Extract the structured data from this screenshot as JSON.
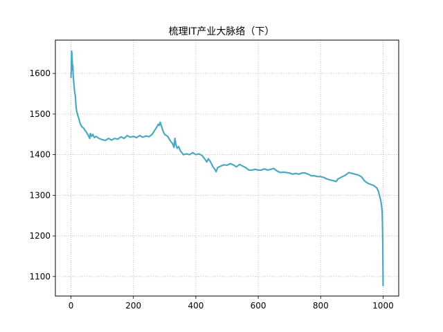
{
  "chart_data": {
    "type": "line",
    "title": "梳理IT产业大脉络（下）",
    "xlabel": "",
    "ylabel": "",
    "xlim": [
      -50,
      1050
    ],
    "ylim": [
      1052,
      1682
    ],
    "grid": true,
    "grid_style": "dotted",
    "xticks": [
      0,
      200,
      400,
      600,
      800,
      1000
    ],
    "yticks": [
      1100,
      1200,
      1300,
      1400,
      1500,
      1600
    ],
    "series": [
      {
        "color": "#4aa9c0",
        "points": [
          [
            0,
            1590
          ],
          [
            1,
            1610
          ],
          [
            2,
            1655
          ],
          [
            3,
            1648
          ],
          [
            4,
            1630
          ],
          [
            5,
            1608
          ],
          [
            6,
            1620
          ],
          [
            7,
            1598
          ],
          [
            8,
            1585
          ],
          [
            10,
            1570
          ],
          [
            12,
            1552
          ],
          [
            14,
            1545
          ],
          [
            16,
            1520
          ],
          [
            18,
            1508
          ],
          [
            20,
            1502
          ],
          [
            22,
            1496
          ],
          [
            25,
            1490
          ],
          [
            28,
            1480
          ],
          [
            32,
            1472
          ],
          [
            36,
            1468
          ],
          [
            40,
            1466
          ],
          [
            45,
            1460
          ],
          [
            50,
            1455
          ],
          [
            55,
            1448
          ],
          [
            60,
            1440
          ],
          [
            62,
            1452
          ],
          [
            66,
            1445
          ],
          [
            70,
            1450
          ],
          [
            75,
            1442
          ],
          [
            80,
            1445
          ],
          [
            90,
            1440
          ],
          [
            100,
            1437
          ],
          [
            110,
            1435
          ],
          [
            120,
            1440
          ],
          [
            130,
            1436
          ],
          [
            140,
            1440
          ],
          [
            150,
            1438
          ],
          [
            160,
            1444
          ],
          [
            170,
            1440
          ],
          [
            180,
            1447
          ],
          [
            190,
            1443
          ],
          [
            200,
            1445
          ],
          [
            210,
            1442
          ],
          [
            220,
            1447
          ],
          [
            230,
            1443
          ],
          [
            240,
            1446
          ],
          [
            250,
            1444
          ],
          [
            260,
            1450
          ],
          [
            265,
            1456
          ],
          [
            270,
            1462
          ],
          [
            275,
            1468
          ],
          [
            280,
            1475
          ],
          [
            283,
            1472
          ],
          [
            286,
            1480
          ],
          [
            290,
            1470
          ],
          [
            295,
            1458
          ],
          [
            300,
            1450
          ],
          [
            310,
            1445
          ],
          [
            315,
            1438
          ],
          [
            320,
            1432
          ],
          [
            325,
            1428
          ],
          [
            330,
            1418
          ],
          [
            333,
            1440
          ],
          [
            336,
            1425
          ],
          [
            340,
            1416
          ],
          [
            345,
            1420
          ],
          [
            350,
            1410
          ],
          [
            355,
            1405
          ],
          [
            360,
            1400
          ],
          [
            370,
            1402
          ],
          [
            380,
            1400
          ],
          [
            390,
            1405
          ],
          [
            400,
            1400
          ],
          [
            410,
            1402
          ],
          [
            420,
            1398
          ],
          [
            425,
            1393
          ],
          [
            430,
            1388
          ],
          [
            435,
            1382
          ],
          [
            440,
            1390
          ],
          [
            445,
            1385
          ],
          [
            450,
            1378
          ],
          [
            455,
            1370
          ],
          [
            460,
            1365
          ],
          [
            465,
            1358
          ],
          [
            470,
            1368
          ],
          [
            480,
            1372
          ],
          [
            490,
            1375
          ],
          [
            500,
            1374
          ],
          [
            510,
            1378
          ],
          [
            520,
            1375
          ],
          [
            530,
            1370
          ],
          [
            540,
            1376
          ],
          [
            550,
            1372
          ],
          [
            560,
            1368
          ],
          [
            570,
            1362
          ],
          [
            580,
            1362
          ],
          [
            590,
            1364
          ],
          [
            600,
            1362
          ],
          [
            610,
            1362
          ],
          [
            620,
            1365
          ],
          [
            630,
            1362
          ],
          [
            640,
            1364
          ],
          [
            650,
            1366
          ],
          [
            660,
            1360
          ],
          [
            670,
            1356
          ],
          [
            680,
            1357
          ],
          [
            690,
            1356
          ],
          [
            700,
            1355
          ],
          [
            710,
            1352
          ],
          [
            720,
            1354
          ],
          [
            730,
            1352
          ],
          [
            740,
            1355
          ],
          [
            750,
            1355
          ],
          [
            760,
            1352
          ],
          [
            770,
            1348
          ],
          [
            780,
            1348
          ],
          [
            790,
            1346
          ],
          [
            800,
            1346
          ],
          [
            810,
            1344
          ],
          [
            820,
            1340
          ],
          [
            830,
            1338
          ],
          [
            840,
            1336
          ],
          [
            850,
            1334
          ],
          [
            855,
            1340
          ],
          [
            860,
            1342
          ],
          [
            870,
            1346
          ],
          [
            880,
            1350
          ],
          [
            890,
            1356
          ],
          [
            900,
            1354
          ],
          [
            910,
            1352
          ],
          [
            920,
            1350
          ],
          [
            930,
            1346
          ],
          [
            940,
            1336
          ],
          [
            950,
            1330
          ],
          [
            960,
            1327
          ],
          [
            970,
            1324
          ],
          [
            980,
            1318
          ],
          [
            985,
            1310
          ],
          [
            990,
            1295
          ],
          [
            993,
            1285
          ],
          [
            995,
            1275
          ],
          [
            997,
            1260
          ],
          [
            998,
            1230
          ],
          [
            999,
            1180
          ],
          [
            1000,
            1078
          ]
        ]
      }
    ]
  }
}
